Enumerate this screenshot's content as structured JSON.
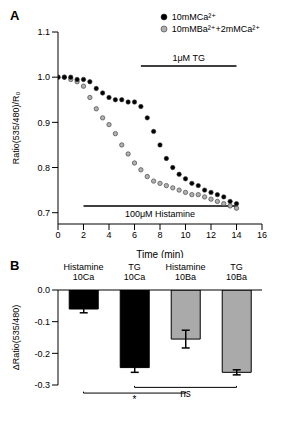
{
  "chart_data": [
    {
      "type": "line",
      "title": "A",
      "x_label": "Time (min)",
      "y_label": "Ratio(535/480)/R₀",
      "x": [
        0,
        0.5,
        1,
        1.5,
        2,
        2.5,
        3,
        3.5,
        4,
        4.5,
        5,
        5.5,
        6,
        6.5,
        7,
        7.5,
        8,
        8.5,
        9,
        9.5,
        10,
        10.5,
        11,
        11.5,
        12,
        12.5,
        13,
        13.5,
        14
      ],
      "series": [
        {
          "name": "10mMCa²⁺",
          "color": "#000000",
          "marker": "circle",
          "line_style": "none",
          "values": [
            1.0,
            1.0,
            1.0,
            0.995,
            0.995,
            0.99,
            0.975,
            0.965,
            0.955,
            0.95,
            0.95,
            0.945,
            0.945,
            0.935,
            0.91,
            0.88,
            0.85,
            0.82,
            0.8,
            0.785,
            0.775,
            0.765,
            0.76,
            0.75,
            0.745,
            0.74,
            0.735,
            0.725,
            0.72
          ]
        },
        {
          "name": "10mMBa²⁺+2mMCa²⁺",
          "color": "#b0b0b0",
          "marker": "circle",
          "line_style": "none",
          "values": [
            1.0,
            1.0,
            0.995,
            0.99,
            0.98,
            0.955,
            0.93,
            0.91,
            0.895,
            0.875,
            0.85,
            0.83,
            0.81,
            0.795,
            0.78,
            0.77,
            0.765,
            0.76,
            0.755,
            0.75,
            0.745,
            0.74,
            0.74,
            0.735,
            0.73,
            0.725,
            0.72,
            0.715,
            0.71
          ]
        }
      ],
      "xlim": [
        0,
        16
      ],
      "xticks": [
        0,
        2,
        4,
        6,
        8,
        10,
        12,
        14,
        16
      ],
      "ylim": [
        0.675,
        1.1
      ],
      "yticks": [
        0.7,
        0.8,
        0.9,
        {
          "value": 1,
          "label": "1.0"
        },
        1.1
      ],
      "legend": "upper right",
      "annotations": [
        {
          "text": "1μM TG",
          "x": [
            6.5,
            14
          ],
          "y": 1.025
        },
        {
          "text": "100μM Histamine",
          "x": [
            2,
            14
          ],
          "y": 0.715
        }
      ]
    },
    {
      "type": "bar",
      "title": "B",
      "y_label": "ΔRatio(535/480)",
      "categories": [
        "Histamine\n10Ca",
        "TG\n10Ca",
        "Histamine\n10Ba",
        "TG\n10Ba"
      ],
      "values": [
        -0.06,
        -0.245,
        -0.155,
        -0.26
      ],
      "errors": [
        0.012,
        0.015,
        0.028,
        0.008
      ],
      "colors": [
        "#000000",
        "#000000",
        "#aaaaaa",
        "#aaaaaa"
      ],
      "ylim": [
        -0.3,
        0
      ],
      "yticks": [
        {
          "value": 0,
          "label": "0.0"
        },
        -0.1,
        -0.2,
        -0.3
      ],
      "comparisons": [
        {
          "groups": [
            "TG\n10Ca",
            "TG\n10Ba"
          ],
          "label": "ns"
        },
        {
          "groups": [
            "Histamine\n10Ca",
            "Histamine\n10Ba"
          ],
          "label": "*"
        }
      ]
    }
  ]
}
